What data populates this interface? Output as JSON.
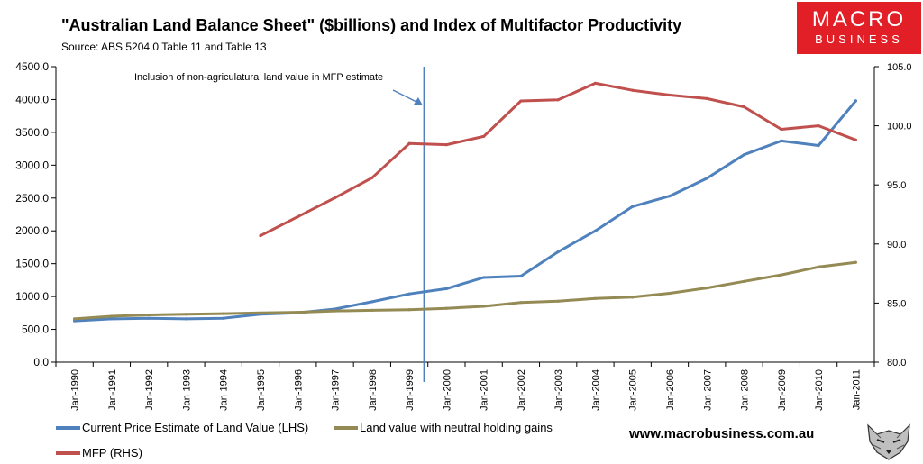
{
  "header": {
    "title": "\"Australian Land Balance Sheet\" ($billions) and Index of Multifactor Productivity",
    "source": "Source: ABS 5204.0 Table 11 and Table 13"
  },
  "logo": {
    "line1": "MACRO",
    "line2": "BUSINESS"
  },
  "website": "www.macrobusiness.com.au",
  "chart_data": {
    "type": "line",
    "categories": [
      "Jan-1990",
      "Jan-1991",
      "Jan-1992",
      "Jan-1993",
      "Jan-1994",
      "Jan-1995",
      "Jan-1996",
      "Jan-1997",
      "Jan-1998",
      "Jan-1999",
      "Jan-2000",
      "Jan-2001",
      "Jan-2002",
      "Jan-2003",
      "Jan-2004",
      "Jan-2005",
      "Jan-2006",
      "Jan-2007",
      "Jan-2008",
      "Jan-2009",
      "Jan-2010",
      "Jan-2011"
    ],
    "y_left": {
      "ylim": [
        0,
        4500
      ],
      "ticks": [
        "0.0",
        "500.0",
        "1000.0",
        "1500.0",
        "2000.0",
        "2500.0",
        "3000.0",
        "3500.0",
        "4000.0",
        "4500.0"
      ]
    },
    "y_right": {
      "ylim": [
        80,
        105
      ],
      "ticks": [
        "80.0",
        "85.0",
        "90.0",
        "95.0",
        "100.0",
        "105.0"
      ]
    },
    "series": [
      {
        "name": "Current Price Estimate of Land Value (LHS)",
        "axis": "left",
        "color": "#4f81bd",
        "values": [
          630,
          660,
          670,
          660,
          670,
          730,
          750,
          810,
          920,
          1040,
          1120,
          1290,
          1310,
          1680,
          2000,
          2370,
          2530,
          2800,
          3160,
          3370,
          3300,
          3980
        ]
      },
      {
        "name": "Land value with neutral holding gains",
        "axis": "left",
        "color": "#948a54",
        "values": [
          660,
          700,
          720,
          730,
          740,
          750,
          760,
          780,
          790,
          800,
          820,
          850,
          910,
          930,
          970,
          990,
          1050,
          1130,
          1230,
          1330,
          1450,
          1520
        ]
      },
      {
        "name": "MFP (RHS)",
        "axis": "right",
        "color": "#c0504d",
        "values": [
          null,
          null,
          null,
          null,
          null,
          90.7,
          92.3,
          93.9,
          95.6,
          98.5,
          98.4,
          99.1,
          102.1,
          102.2,
          103.6,
          103.0,
          102.6,
          102.3,
          101.6,
          99.7,
          100.0,
          98.8
        ]
      }
    ],
    "annotation": {
      "text": "Inclusion of non-agriculatural land value in MFP estimate",
      "x_value": 9.4,
      "line_color": "#4f81bd"
    }
  }
}
